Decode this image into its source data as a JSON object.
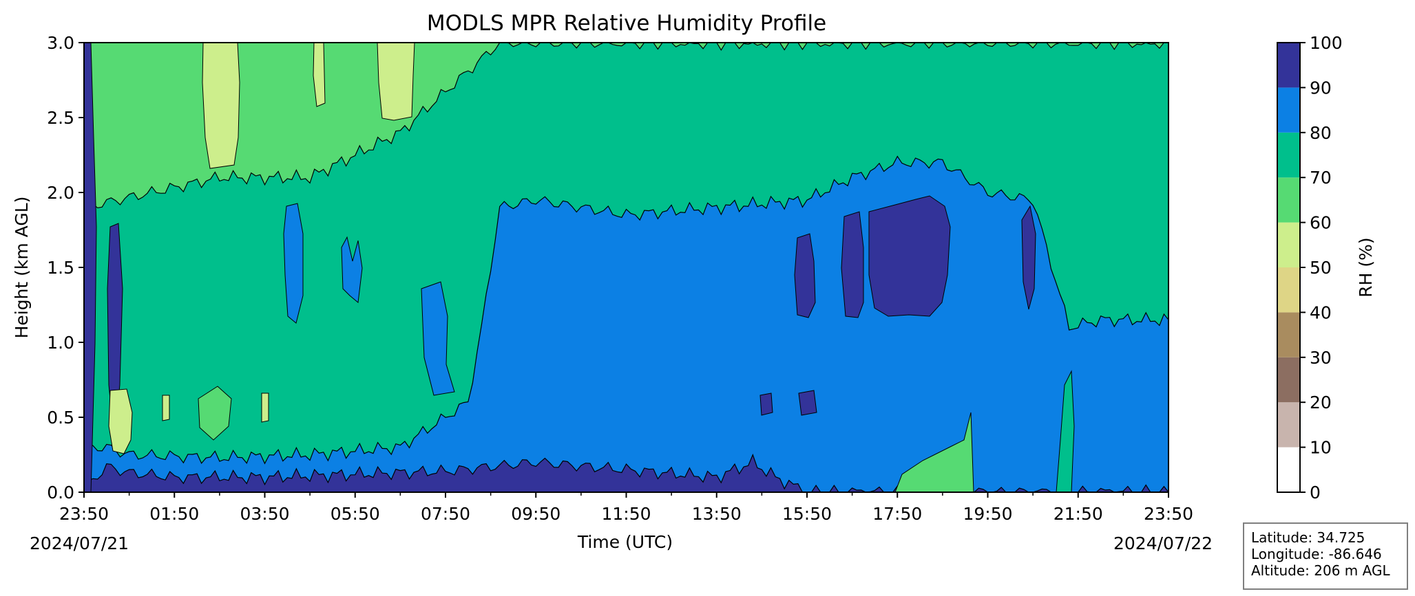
{
  "chart_data": {
    "type": "heatmap",
    "title": "MODLS MPR Relative Humidity Profile",
    "xlabel": "Time (UTC)",
    "ylabel": "Height (km AGL)",
    "x_tick_labels": [
      "23:50",
      "01:50",
      "03:50",
      "05:50",
      "07:50",
      "09:50",
      "11:50",
      "13:50",
      "15:50",
      "17:50",
      "19:50",
      "21:50",
      "23:50"
    ],
    "x_date_labels": {
      "start": "2024/07/21",
      "end": "2024/07/22"
    },
    "y_ticks": [
      0.0,
      0.5,
      1.0,
      1.5,
      2.0,
      2.5,
      3.0
    ],
    "y_tick_labels": [
      "0.0",
      "0.5",
      "1.0",
      "1.5",
      "2.0",
      "2.5",
      "3.0"
    ],
    "ylim": [
      0.0,
      3.0
    ],
    "colorbar": {
      "label": "RH (%)",
      "levels": [
        0,
        10,
        20,
        30,
        40,
        50,
        60,
        70,
        80,
        90,
        100
      ],
      "tick_labels": [
        "0",
        "10",
        "20",
        "30",
        "40",
        "50",
        "60",
        "70",
        "80",
        "90",
        "100"
      ],
      "colors": [
        "#ffffff",
        "#c8b4ad",
        "#8c6e61",
        "#a98c5f",
        "#ded586",
        "#cdee8c",
        "#56da73",
        "#00bf8c",
        "#0c80e4",
        "#333399"
      ]
    },
    "approx_boundaries_km": {
      "rh90_top": [
        [
          0.0,
          0.02
        ],
        [
          0.5,
          0.17
        ],
        [
          1.0,
          0.13
        ],
        [
          2.0,
          0.1
        ],
        [
          4.0,
          0.1
        ],
        [
          6.0,
          0.12
        ],
        [
          8.0,
          0.14
        ],
        [
          9.0,
          0.17
        ],
        [
          10.0,
          0.2
        ],
        [
          12.0,
          0.15
        ],
        [
          14.0,
          0.1
        ],
        [
          14.8,
          0.2
        ],
        [
          15.3,
          0.1
        ],
        [
          16.0,
          0.0
        ],
        [
          24.0,
          0.0
        ]
      ],
      "rh80_top": [
        [
          0.0,
          0.3
        ],
        [
          0.5,
          0.3
        ],
        [
          1.0,
          0.25
        ],
        [
          3.0,
          0.23
        ],
        [
          5.0,
          0.25
        ],
        [
          7.0,
          0.3
        ],
        [
          8.5,
          0.6
        ],
        [
          8.8,
          1.1
        ],
        [
          9.2,
          1.9
        ],
        [
          10.0,
          1.95
        ],
        [
          12.0,
          1.85
        ],
        [
          14.0,
          1.9
        ],
        [
          16.0,
          1.95
        ],
        [
          17.0,
          2.1
        ],
        [
          18.0,
          2.2
        ],
        [
          19.0,
          2.2
        ],
        [
          20.0,
          2.0
        ],
        [
          21.0,
          1.95
        ],
        [
          21.8,
          1.1
        ],
        [
          22.5,
          1.15
        ],
        [
          24.0,
          1.15
        ]
      ],
      "rh70_top": [
        [
          0.0,
          1.9
        ],
        [
          1.5,
          2.0
        ],
        [
          3.0,
          2.1
        ],
        [
          5.0,
          2.1
        ],
        [
          7.0,
          2.4
        ],
        [
          9.2,
          3.0
        ],
        [
          24.0,
          3.0
        ]
      ],
      "rh60_top": [
        [
          0.0,
          3.0
        ],
        [
          24.0,
          3.0
        ]
      ]
    }
  },
  "info_box": {
    "latitude": "Latitude: 34.725",
    "longitude": "Longitude: -86.646",
    "altitude": "Altitude: 206 m AGL"
  }
}
